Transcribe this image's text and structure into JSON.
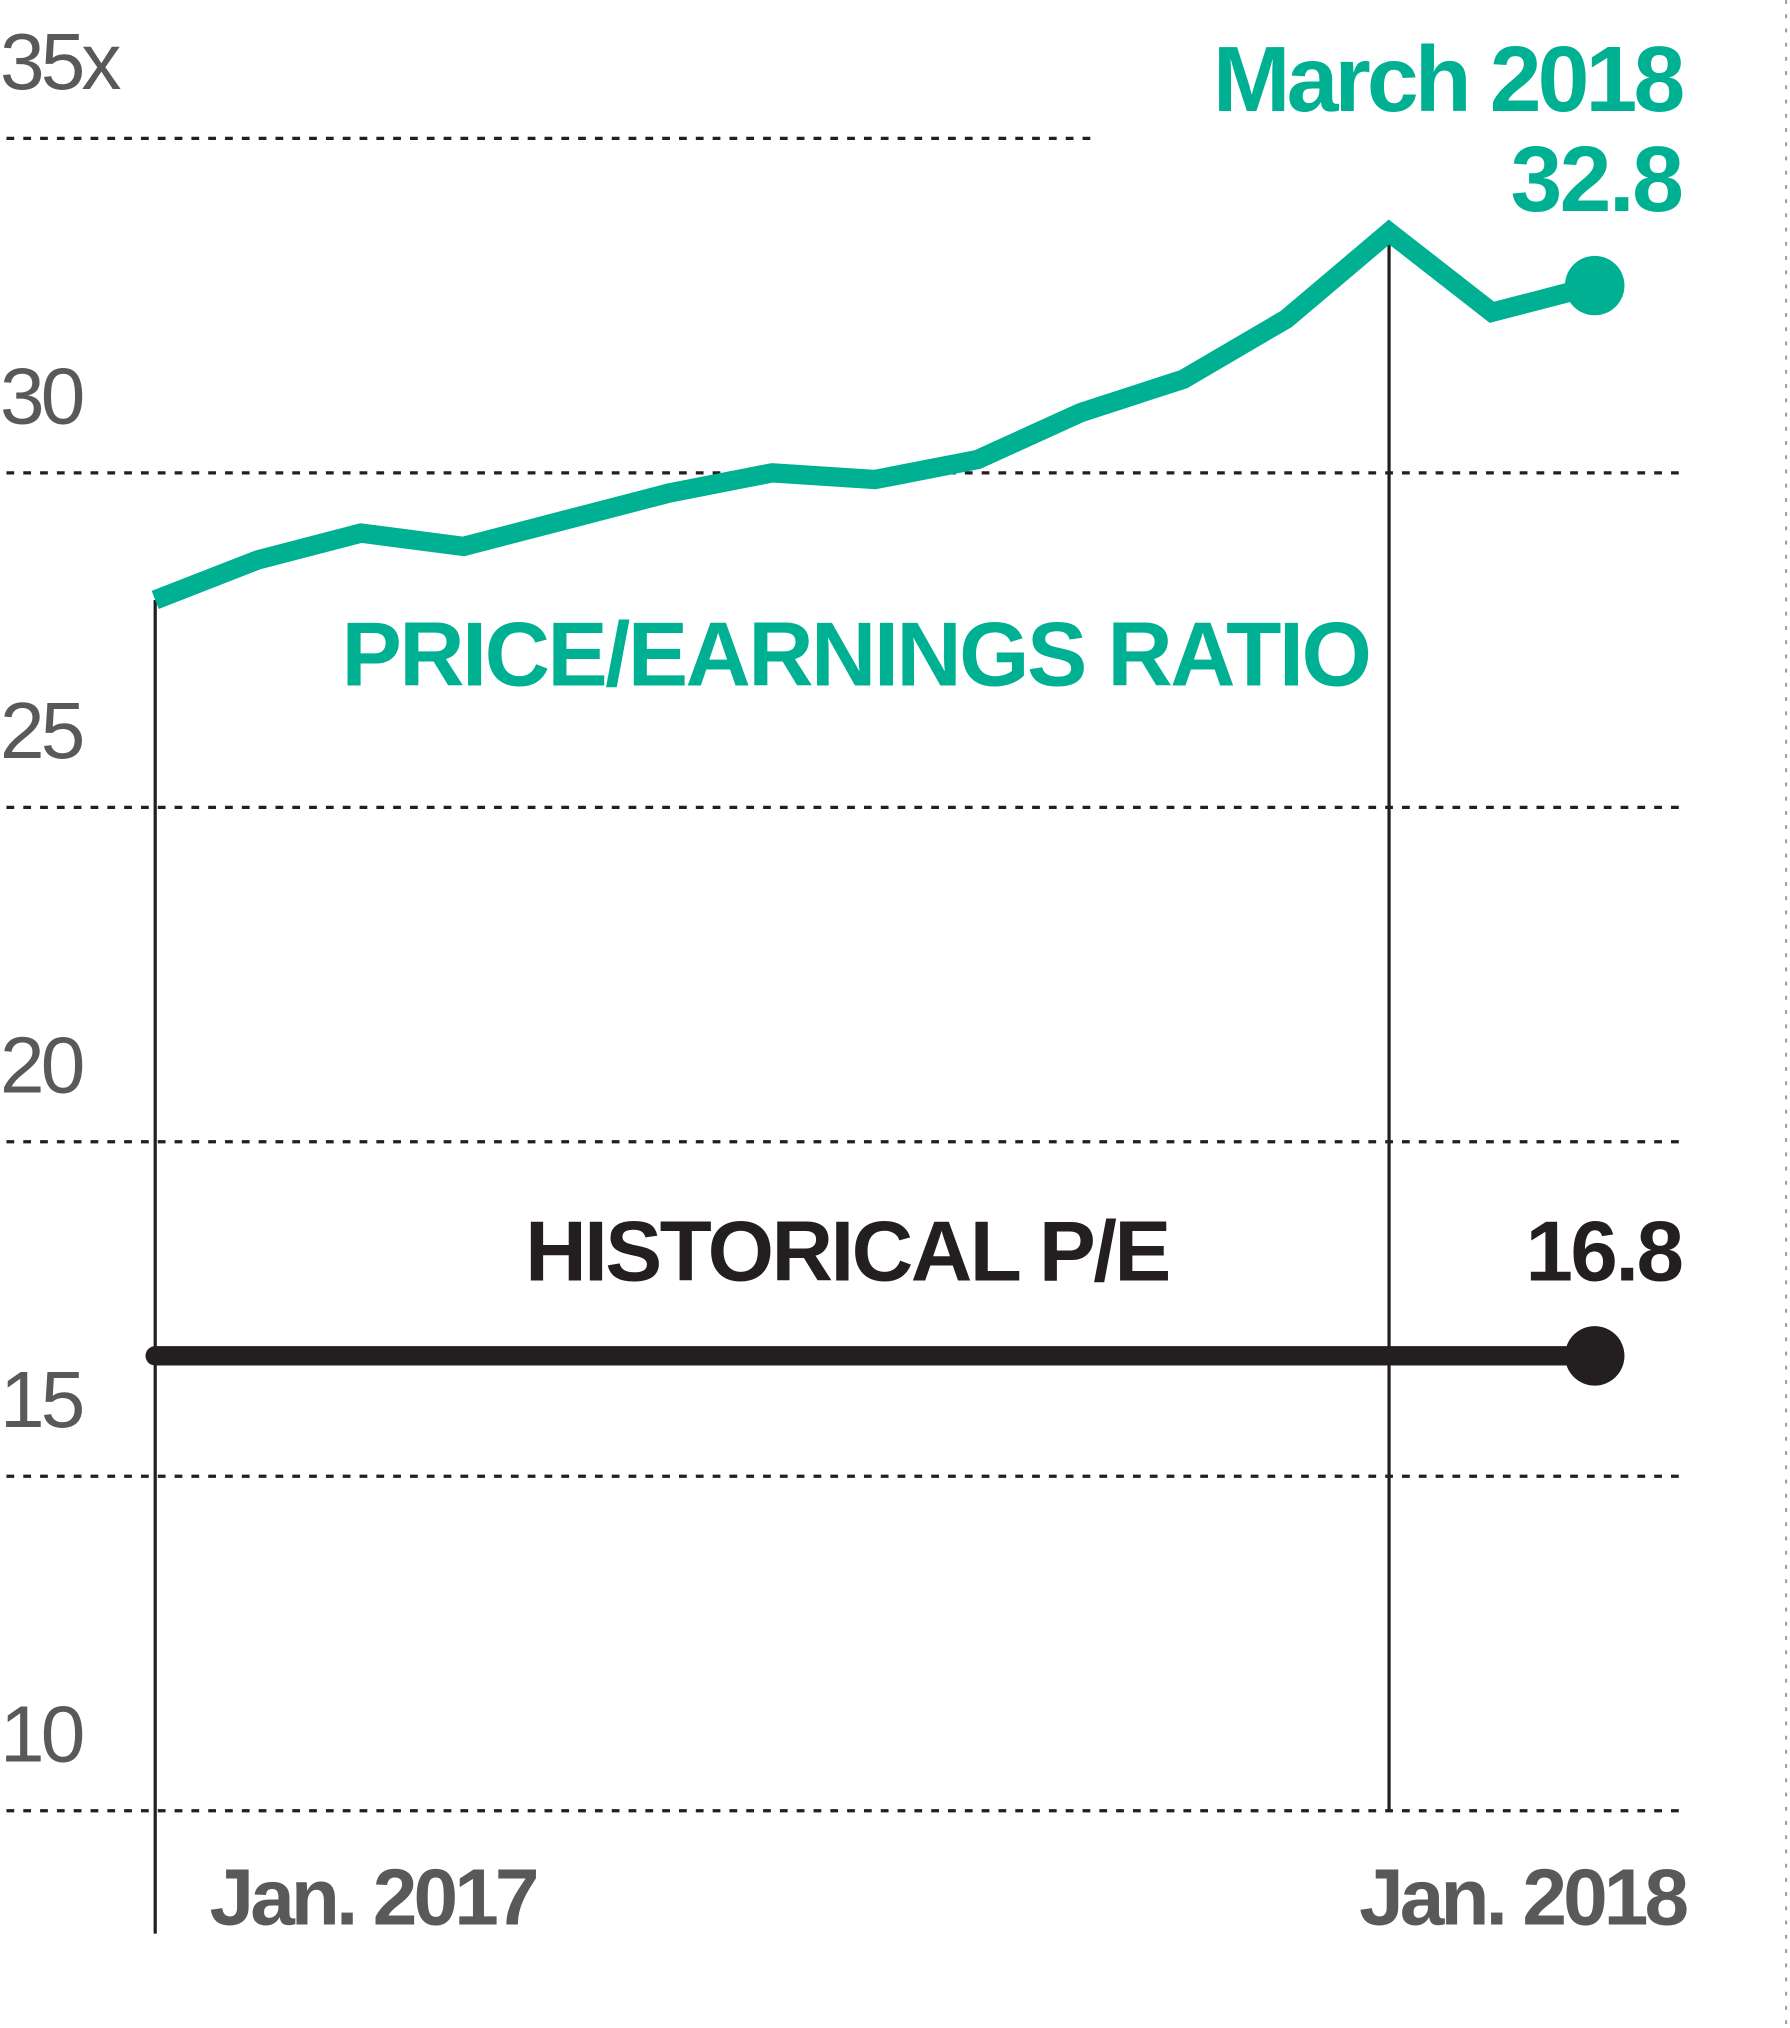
{
  "chart_data": {
    "type": "line",
    "categories": [
      "Jan. 2017",
      null,
      null,
      null,
      null,
      null,
      null,
      null,
      null,
      null,
      null,
      null,
      "Jan. 2018",
      null,
      null
    ],
    "ylim": [
      10,
      35
    ],
    "yticks": [
      10,
      15,
      20,
      25,
      30,
      {
        "value": 35,
        "label": "35x"
      }
    ],
    "grid": true,
    "annotation": "March 2018",
    "series": [
      {
        "name": "PRICE/EARNINGS RATIO",
        "color": "#00b092",
        "values": [
          28.1,
          28.7,
          29.1,
          28.9,
          29.3,
          29.7,
          30.0,
          29.9,
          30.2,
          30.9,
          31.4,
          32.3,
          33.6,
          32.4,
          32.8
        ]
      },
      {
        "name": "HISTORICAL P/E",
        "color": "#231f20",
        "values": [
          16.8,
          16.8,
          16.8,
          16.8,
          16.8,
          16.8,
          16.8,
          16.8,
          16.8,
          16.8,
          16.8,
          16.8,
          16.8,
          16.8,
          16.8
        ]
      }
    ]
  }
}
